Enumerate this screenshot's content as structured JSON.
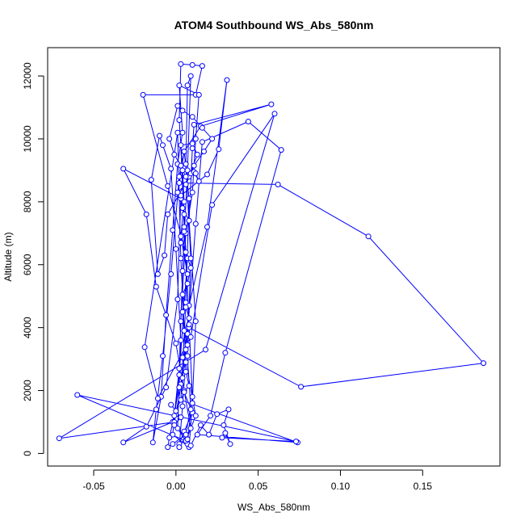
{
  "chart_data": {
    "type": "scatter",
    "title": "ATOM4 Southbound WS_Abs_580nm",
    "xlabel": "WS_Abs_580nm",
    "ylabel": "Altitude (m)",
    "xlim": [
      -0.078,
      0.197
    ],
    "ylim": [
      -400,
      12900
    ],
    "xticks": [
      -0.05,
      0.0,
      0.05,
      0.1,
      0.15
    ],
    "xtick_labels": [
      "-0.05",
      "0.00",
      "0.05",
      "0.10",
      "0.15"
    ],
    "yticks": [
      0,
      2000,
      4000,
      6000,
      8000,
      10000,
      12000
    ],
    "ytick_labels": [
      "0",
      "2000",
      "4000",
      "6000",
      "8000",
      "10000",
      "12000"
    ],
    "grid": false,
    "colors": {
      "series": "#0000ff",
      "axes": "#000000",
      "background": "#ffffff"
    },
    "series": [
      {
        "style": "line-with-open-circles",
        "points": [
          [
            0.002,
            300
          ],
          [
            0.005,
            700
          ],
          [
            0.01,
            1300
          ],
          [
            0.003,
            2200
          ],
          [
            0.006,
            3300
          ],
          [
            0.004,
            4500
          ],
          [
            0.007,
            5700
          ],
          [
            0.003,
            6900
          ],
          [
            0.005,
            8000
          ],
          [
            0.004,
            9000
          ],
          [
            0.002,
            10600
          ],
          [
            0.003,
            12380
          ],
          [
            0.01,
            12350
          ],
          [
            0.016,
            12320
          ],
          [
            0.012,
            11400
          ],
          [
            -0.02,
            11400
          ],
          [
            -0.005,
            8500
          ],
          [
            0.007,
            6200
          ],
          [
            0.002,
            2500
          ],
          [
            -0.002,
            600
          ],
          [
            0.008,
            200
          ],
          [
            0.01,
            1600
          ],
          [
            0.012,
            4200
          ],
          [
            0.008,
            7400
          ],
          [
            0.01,
            9700
          ],
          [
            0.011,
            10450
          ],
          [
            0.058,
            11100
          ],
          [
            0.015,
            10400
          ],
          [
            0.005,
            9600
          ],
          [
            0.002,
            8600
          ],
          [
            0.062,
            8550
          ],
          [
            0.117,
            6900
          ],
          [
            0.187,
            2870
          ],
          [
            0.076,
            2120
          ],
          [
            0.008,
            4000
          ],
          [
            0.005,
            7200
          ],
          [
            0.003,
            9800
          ],
          [
            0.01,
            9850
          ],
          [
            0.013,
            9500
          ],
          [
            0.008,
            8800
          ],
          [
            -0.005,
            7600
          ],
          [
            -0.007,
            6300
          ],
          [
            -0.011,
            5700
          ],
          [
            -0.015,
            8700
          ],
          [
            -0.01,
            10100
          ],
          [
            -0.008,
            9800
          ],
          [
            -0.003,
            9050
          ],
          [
            0.0,
            6500
          ],
          [
            0.003,
            3600
          ],
          [
            0.001,
            800
          ],
          [
            0.007,
            300
          ],
          [
            0.009,
            1400
          ],
          [
            0.007,
            3100
          ],
          [
            0.009,
            6200
          ],
          [
            0.006,
            9200
          ],
          [
            0.007,
            11700
          ],
          [
            0.009,
            12000
          ],
          [
            0.007,
            9000
          ],
          [
            0.004,
            5800
          ],
          [
            0.002,
            2700
          ],
          [
            -0.001,
            1200
          ],
          [
            -0.004,
            500
          ],
          [
            -0.005,
            200
          ],
          [
            -0.002,
            300
          ],
          [
            0.006,
            600
          ],
          [
            0.01,
            1800
          ],
          [
            0.008,
            4100
          ],
          [
            0.005,
            7600
          ],
          [
            0.003,
            8100
          ],
          [
            -0.032,
            9050
          ],
          [
            -0.018,
            7600
          ],
          [
            -0.012,
            5300
          ],
          [
            0.0,
            3500
          ],
          [
            0.005,
            2000
          ],
          [
            0.009,
            800
          ],
          [
            0.002,
            200
          ],
          [
            0.004,
            1500
          ],
          [
            0.007,
            3800
          ],
          [
            0.012,
            7300
          ],
          [
            0.016,
            9900
          ],
          [
            0.044,
            10550
          ],
          [
            0.064,
            9650
          ],
          [
            0.03,
            3200
          ],
          [
            0.021,
            1200
          ],
          [
            0.013,
            600
          ],
          [
            0.074,
            350
          ],
          [
            0.003,
            1700
          ],
          [
            0.006,
            4800
          ],
          [
            0.008,
            8100
          ],
          [
            0.005,
            9600
          ],
          [
            0.002,
            8800
          ],
          [
            -0.003,
            5700
          ],
          [
            -0.008,
            3100
          ],
          [
            -0.012,
            1400
          ],
          [
            -0.014,
            350
          ],
          [
            -0.009,
            1800
          ],
          [
            -0.006,
            4400
          ],
          [
            -0.002,
            7100
          ],
          [
            0.001,
            9200
          ],
          [
            0.004,
            10200
          ],
          [
            0.002,
            11700
          ],
          [
            0.014,
            11400
          ],
          [
            0.012,
            10000
          ],
          [
            0.01,
            8300
          ],
          [
            0.006,
            7000
          ],
          [
            0.003,
            4200
          ],
          [
            0.002,
            2100
          ],
          [
            -0.002,
            1000
          ],
          [
            -0.032,
            350
          ],
          [
            -0.018,
            850
          ],
          [
            -0.006,
            2100
          ],
          [
            0.001,
            4900
          ],
          [
            0.003,
            8200
          ],
          [
            0.019,
            8870
          ],
          [
            0.026,
            9670
          ],
          [
            0.031,
            11870
          ],
          [
            0.019,
            7200
          ],
          [
            0.008,
            4700
          ],
          [
            0.004,
            2400
          ],
          [
            -0.001,
            1000
          ],
          [
            -0.071,
            480
          ],
          [
            0.018,
            3300
          ],
          [
            0.06,
            10800
          ],
          [
            0.022,
            7900
          ],
          [
            0.009,
            3700
          ],
          [
            -0.011,
            1750
          ],
          [
            -0.019,
            3380
          ],
          [
            0.001,
            10200
          ],
          [
            0.003,
            6200
          ],
          [
            0.006,
            2900
          ],
          [
            0.012,
            1200
          ],
          [
            0.006,
            400
          ],
          [
            -0.06,
            1860
          ],
          [
            0.073,
            380
          ],
          [
            0.028,
            500
          ],
          [
            0.03,
            650
          ],
          [
            0.033,
            300
          ],
          [
            0.029,
            900
          ],
          [
            0.032,
            1400
          ],
          [
            0.025,
            1250
          ],
          [
            0.02,
            600
          ],
          [
            0.015,
            900
          ],
          [
            0.009,
            250
          ],
          [
            0.007,
            450
          ],
          [
            -0.001,
            900
          ],
          [
            0.003,
            1150
          ],
          [
            -0.003,
            1550
          ],
          [
            0.0,
            1350
          ],
          [
            0.005,
            1950
          ],
          [
            0.008,
            2150
          ],
          [
            0.006,
            2600
          ],
          [
            0.004,
            3050
          ],
          [
            0.007,
            3450
          ],
          [
            0.005,
            3900
          ],
          [
            0.008,
            4300
          ],
          [
            0.006,
            4650
          ],
          [
            0.004,
            5050
          ],
          [
            0.007,
            5400
          ],
          [
            0.009,
            5900
          ],
          [
            0.006,
            6400
          ],
          [
            0.003,
            6700
          ],
          [
            0.005,
            7050
          ],
          [
            0.008,
            7400
          ],
          [
            0.004,
            7800
          ],
          [
            0.001,
            8300
          ],
          [
            0.006,
            8550
          ],
          [
            0.009,
            8900
          ],
          [
            0.011,
            9150
          ],
          [
            0.017,
            9600
          ],
          [
            0.022,
            10000
          ],
          [
            0.016,
            10350
          ],
          [
            0.01,
            10700
          ],
          [
            0.004,
            10900
          ],
          [
            0.001,
            11050
          ],
          [
            -0.004,
            10000
          ],
          [
            -0.001,
            9500
          ],
          [
            0.003,
            9150
          ],
          [
            0.006,
            8800
          ],
          [
            0.011,
            8950
          ],
          [
            0.014,
            8650
          ],
          [
            0.012,
            8900
          ]
        ]
      }
    ]
  }
}
